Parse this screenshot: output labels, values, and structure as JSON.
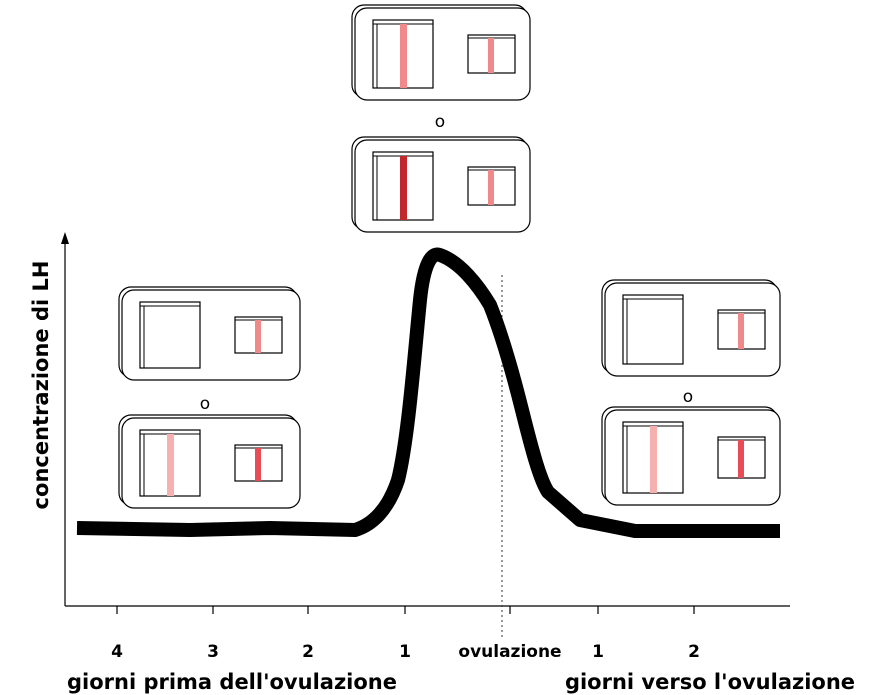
{
  "y_axis_label": "concentrazione di LH",
  "x_ticks": [
    "4",
    "3",
    "2",
    "1",
    "ovulazione",
    "1",
    "2"
  ],
  "x_labels": {
    "before": "giorni prima dell'ovulazione",
    "after": "giorni verso l'ovulazione"
  },
  "separators": [
    "o",
    "o",
    "o"
  ]
}
